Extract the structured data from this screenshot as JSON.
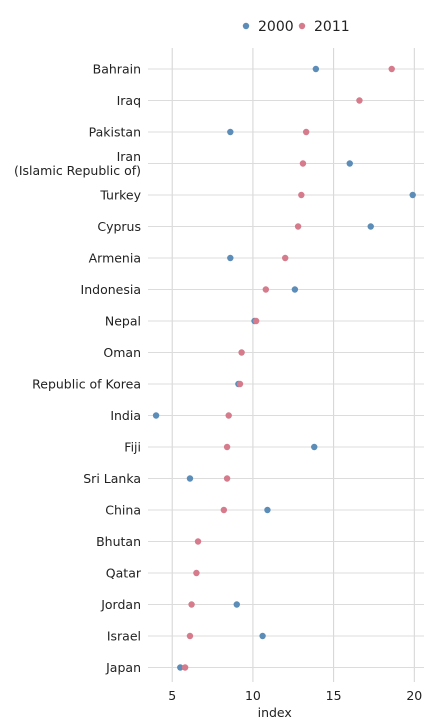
{
  "chart_data": {
    "type": "scatter",
    "xlabel": "index",
    "xlim": [
      3.5,
      20.6
    ],
    "xticks": [
      5,
      10,
      15,
      20
    ],
    "grid": true,
    "legend": "top",
    "categories": [
      [
        "Bahrain"
      ],
      [
        "Iraq"
      ],
      [
        "Pakistan"
      ],
      [
        "Iran",
        "(Islamic Republic of)"
      ],
      [
        "Turkey"
      ],
      [
        "Cyprus"
      ],
      [
        "Armenia"
      ],
      [
        "Indonesia"
      ],
      [
        "Nepal"
      ],
      [
        "Oman"
      ],
      [
        "Republic of Korea"
      ],
      [
        "India"
      ],
      [
        "Fiji"
      ],
      [
        "Sri Lanka"
      ],
      [
        "China"
      ],
      [
        "Bhutan"
      ],
      [
        "Qatar"
      ],
      [
        "Jordan"
      ],
      [
        "Israel"
      ],
      [
        "Japan"
      ]
    ],
    "series": [
      {
        "name": "2000",
        "color": "#5b8db8",
        "values": [
          13.9,
          null,
          8.6,
          16.0,
          19.9,
          17.3,
          8.6,
          12.6,
          10.1,
          null,
          9.1,
          4.0,
          13.8,
          6.1,
          10.9,
          null,
          null,
          9.0,
          10.6,
          5.5
        ]
      },
      {
        "name": "2011",
        "color": "#d57b8c",
        "values": [
          18.6,
          16.6,
          13.3,
          13.1,
          13.0,
          12.8,
          12.0,
          10.8,
          10.2,
          9.3,
          9.2,
          8.5,
          8.4,
          8.4,
          8.2,
          6.6,
          6.5,
          6.2,
          6.1,
          5.8
        ]
      }
    ]
  }
}
